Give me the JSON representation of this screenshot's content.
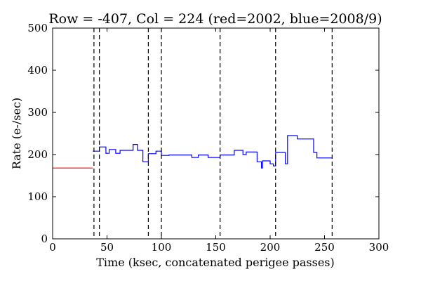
{
  "chart_data": {
    "type": "line",
    "title": "Row = -407, Col = 224 (red=2002, blue=2008/9)",
    "xlabel": "Time (ksec, concatenated perigee passes)",
    "ylabel": "Rate (e-/sec)",
    "xlim": [
      0,
      300
    ],
    "ylim": [
      0,
      500
    ],
    "xticks": [
      0,
      50,
      100,
      150,
      200,
      250,
      300
    ],
    "yticks": [
      0,
      100,
      200,
      300,
      400,
      500
    ],
    "grid": false,
    "series": [
      {
        "color": "#ff0000",
        "step": true,
        "points": [
          [
            0,
            168
          ],
          [
            37,
            168
          ]
        ]
      },
      {
        "color": "#0000ff",
        "step": true,
        "points": [
          [
            37,
            208
          ],
          [
            43,
            218
          ],
          [
            49,
            203
          ],
          [
            52,
            212
          ],
          [
            58,
            203
          ],
          [
            62,
            210
          ],
          [
            74,
            224
          ],
          [
            78,
            210
          ],
          [
            83,
            183
          ],
          [
            88,
            202
          ],
          [
            95,
            208
          ],
          [
            100,
            198
          ],
          [
            107,
            199
          ],
          [
            128,
            193
          ],
          [
            134,
            199
          ],
          [
            143,
            193
          ],
          [
            154,
            199
          ],
          [
            167,
            210
          ],
          [
            175,
            200
          ],
          [
            178,
            206
          ],
          [
            188,
            183
          ],
          [
            192,
            168
          ],
          [
            193,
            185
          ],
          [
            200,
            178
          ],
          [
            203,
            173
          ],
          [
            205,
            205
          ],
          [
            214,
            178
          ],
          [
            216,
            245
          ],
          [
            225,
            237
          ],
          [
            240,
            205
          ],
          [
            243,
            192
          ],
          [
            257,
            192
          ]
        ]
      }
    ],
    "vlines": [
      38,
      43,
      88,
      100,
      154,
      205,
      257
    ],
    "vline_color": "#000000"
  }
}
